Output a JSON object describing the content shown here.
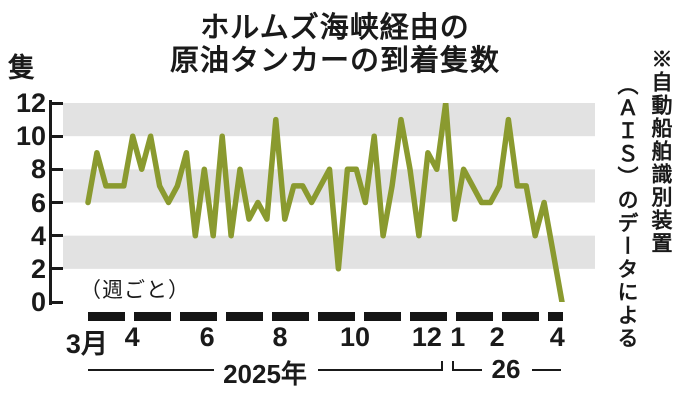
{
  "title": {
    "line1": "ホルムズ海峡経由の",
    "line2": "原油タンカーの到着隻数"
  },
  "y_axis": {
    "unit_label": "隻",
    "ticks": [
      12,
      10,
      8,
      6,
      4,
      2,
      0
    ]
  },
  "annotation_weekly": "（週ごと）",
  "source_note": {
    "column1": "※自動船舶識別装置",
    "column2": "（ＡＩＳ）のデータによる"
  },
  "x_axis": {
    "month_labels": [
      {
        "text": "3月",
        "pos": 0.045
      },
      {
        "text": "4",
        "pos": 0.13
      },
      {
        "text": "6",
        "pos": 0.271
      },
      {
        "text": "8",
        "pos": 0.408
      },
      {
        "text": "10",
        "pos": 0.549
      },
      {
        "text": "12",
        "pos": 0.684
      },
      {
        "text": "1",
        "pos": 0.742
      },
      {
        "text": "2",
        "pos": 0.816
      },
      {
        "text": "4",
        "pos": 0.929
      }
    ],
    "year_labels": [
      {
        "text": "2025年",
        "pos": 0.38
      },
      {
        "text": "26",
        "pos": 0.833
      }
    ]
  },
  "chart_data": {
    "type": "line",
    "title": "ホルムズ海峡経由の原油タンカーの到着隻数",
    "ylabel": "隻",
    "ylim": [
      0,
      12
    ],
    "y_ticks": [
      12,
      10,
      8,
      6,
      4,
      2,
      0
    ],
    "x_tick_labels": [
      "3月",
      "4",
      "6",
      "8",
      "10",
      "12",
      "1",
      "2",
      "4"
    ],
    "year_groups": [
      "2025年",
      "26"
    ],
    "frequency": "週ごと",
    "values": [
      6,
      9,
      7,
      7,
      7,
      10,
      8,
      10,
      7,
      6,
      7,
      9,
      4,
      8,
      4,
      10,
      4,
      8,
      5,
      6,
      5,
      11,
      5,
      7,
      7,
      6,
      7,
      8,
      2,
      8,
      8,
      6,
      10,
      4,
      7,
      11,
      8,
      4,
      9,
      8,
      12,
      5,
      8,
      7,
      6,
      6,
      7,
      11,
      7,
      7,
      4,
      6,
      3,
      0
    ],
    "series_start_pos": 0.047,
    "series_end_pos": 0.938,
    "shaded_bands": [
      [
        10,
        12
      ],
      [
        6,
        8
      ],
      [
        2,
        4
      ]
    ],
    "line_color": "#8a9a2f",
    "band_color": "#e2e2e2",
    "grid": "alternating shaded bands",
    "legend": "none"
  }
}
